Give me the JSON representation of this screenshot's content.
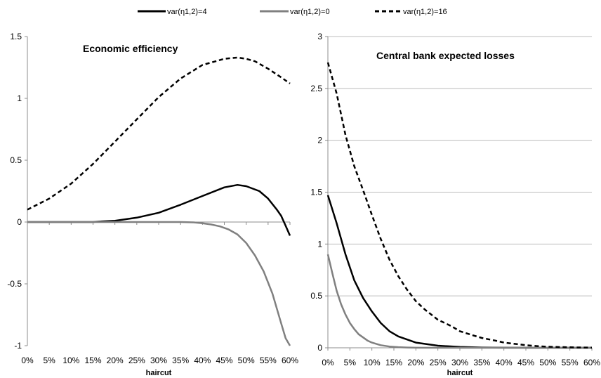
{
  "legend": [
    {
      "label": "var(η1,2)=4",
      "color": "#000000",
      "dash": "solid"
    },
    {
      "label": "var(η1,2)=0",
      "color": "#808080",
      "dash": "solid"
    },
    {
      "label": "var(η1,2)=16",
      "color": "#000000",
      "dash": "dashed"
    }
  ],
  "chart_data": [
    {
      "type": "line",
      "title": "Economic efficiency",
      "xlabel": "haircut",
      "ylabel": "",
      "x_ticks": [
        "0%",
        "5%",
        "10%",
        "15%",
        "20%",
        "25%",
        "30%",
        "35%",
        "40%",
        "45%",
        "50%",
        "55%",
        "60%"
      ],
      "y_ticks": [
        "1.5",
        "1",
        "0.5",
        "0",
        "-0.5",
        "-1"
      ],
      "xlim": [
        0,
        60
      ],
      "ylim": [
        -1,
        1.5
      ],
      "grid": false,
      "series": [
        {
          "name": "var(η1,2)=4",
          "color": "#000000",
          "dash": "solid",
          "x": [
            0,
            5,
            10,
            15,
            17,
            20,
            25,
            30,
            35,
            40,
            45,
            48,
            50,
            53,
            55,
            57,
            58,
            59,
            60
          ],
          "y": [
            0,
            0,
            0,
            0,
            0.005,
            0.01,
            0.035,
            0.075,
            0.14,
            0.21,
            0.28,
            0.3,
            0.29,
            0.25,
            0.19,
            0.1,
            0.05,
            -0.03,
            -0.11
          ]
        },
        {
          "name": "var(η1,2)=0",
          "color": "#808080",
          "dash": "solid",
          "x": [
            0,
            10,
            20,
            30,
            35,
            38,
            40,
            42,
            44,
            46,
            48,
            50,
            52,
            54,
            56,
            57,
            58,
            59,
            60
          ],
          "y": [
            0,
            0,
            0,
            0,
            0,
            -0.003,
            -0.01,
            -0.02,
            -0.035,
            -0.06,
            -0.1,
            -0.17,
            -0.27,
            -0.4,
            -0.58,
            -0.7,
            -0.82,
            -0.94,
            -1.0
          ]
        },
        {
          "name": "var(η1,2)=16",
          "color": "#000000",
          "dash": "dashed",
          "x": [
            0,
            5,
            10,
            15,
            20,
            25,
            30,
            35,
            40,
            45,
            48,
            50,
            52,
            55,
            58,
            60
          ],
          "y": [
            0.1,
            0.19,
            0.31,
            0.47,
            0.65,
            0.83,
            1.01,
            1.16,
            1.27,
            1.32,
            1.33,
            1.32,
            1.3,
            1.24,
            1.17,
            1.12
          ]
        }
      ]
    },
    {
      "type": "line",
      "title": "Central bank expected losses",
      "xlabel": "haircut",
      "ylabel": "",
      "x_ticks": [
        "0%",
        "5%",
        "10%",
        "15%",
        "20%",
        "25%",
        "30%",
        "35%",
        "40%",
        "45%",
        "50%",
        "55%",
        "60%"
      ],
      "y_ticks": [
        "3",
        "2.5",
        "2",
        "1.5",
        "1",
        "0.5",
        "0"
      ],
      "xlim": [
        0,
        60
      ],
      "ylim": [
        0,
        3
      ],
      "grid": true,
      "series": [
        {
          "name": "var(η1,2)=4",
          "color": "#000000",
          "dash": "solid",
          "x": [
            0,
            2,
            4,
            6,
            8,
            10,
            12,
            14,
            16,
            18,
            20,
            25,
            30,
            35,
            40,
            50,
            60
          ],
          "y": [
            1.47,
            1.2,
            0.9,
            0.65,
            0.48,
            0.35,
            0.24,
            0.16,
            0.11,
            0.08,
            0.05,
            0.02,
            0.008,
            0.003,
            0.001,
            0,
            0
          ]
        },
        {
          "name": "var(η1,2)=0",
          "color": "#808080",
          "dash": "solid",
          "x": [
            0,
            1,
            2,
            3,
            4,
            5,
            6,
            7,
            8,
            9,
            10,
            12,
            14,
            16,
            18,
            20,
            25,
            30,
            40,
            60
          ],
          "y": [
            0.9,
            0.72,
            0.55,
            0.42,
            0.32,
            0.24,
            0.18,
            0.13,
            0.1,
            0.07,
            0.05,
            0.025,
            0.012,
            0.006,
            0.003,
            0.001,
            0,
            0,
            0,
            0
          ]
        },
        {
          "name": "var(η1,2)=16",
          "color": "#000000",
          "dash": "dashed",
          "x": [
            0,
            2,
            4,
            6,
            8,
            10,
            12,
            14,
            16,
            18,
            20,
            22,
            25,
            28,
            30,
            33,
            35,
            38,
            40,
            43,
            45,
            48,
            50,
            53,
            55,
            58,
            60
          ],
          "y": [
            2.75,
            2.45,
            2.05,
            1.75,
            1.52,
            1.28,
            1.05,
            0.85,
            0.69,
            0.56,
            0.45,
            0.37,
            0.27,
            0.21,
            0.16,
            0.12,
            0.095,
            0.07,
            0.05,
            0.035,
            0.025,
            0.015,
            0.01,
            0.007,
            0.005,
            0.003,
            0.002
          ]
        }
      ]
    }
  ]
}
